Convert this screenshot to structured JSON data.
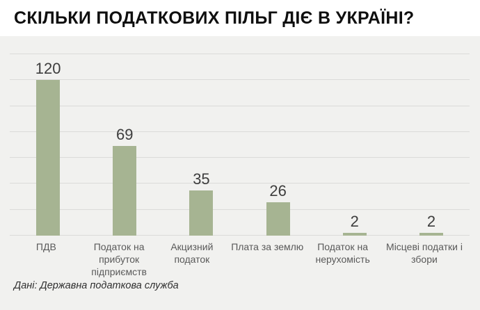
{
  "header": {
    "title": "СКІЛЬКИ ПОДАТКОВИХ ПІЛЬГ ДІЄ В УКРАЇНІ?"
  },
  "footer": {
    "source": "Дані: Державна податкова служба"
  },
  "chart_data": {
    "type": "bar",
    "title": "СКІЛЬКИ ПОДАТКОВИХ ПІЛЬГ ДІЄ В УКРАЇНІ?",
    "categories": [
      "ПДВ",
      "Податок на прибуток підприємств",
      "Акцизний податок",
      "Плата за землю",
      "Податок на нерухомість",
      "Місцеві податки і збори"
    ],
    "values": [
      120,
      69,
      35,
      26,
      2,
      2
    ],
    "xlabel": "",
    "ylabel": "",
    "ylim": [
      0,
      140
    ],
    "gridline_step": 20,
    "grid": true,
    "legend": false,
    "data_labels": true,
    "bar_color": "#a6b492",
    "background_color": "#f1f1ef",
    "header_background": "#ffffff",
    "gridline_color": "#dbdbd9",
    "source": "Дані: Державна податкова служба"
  }
}
